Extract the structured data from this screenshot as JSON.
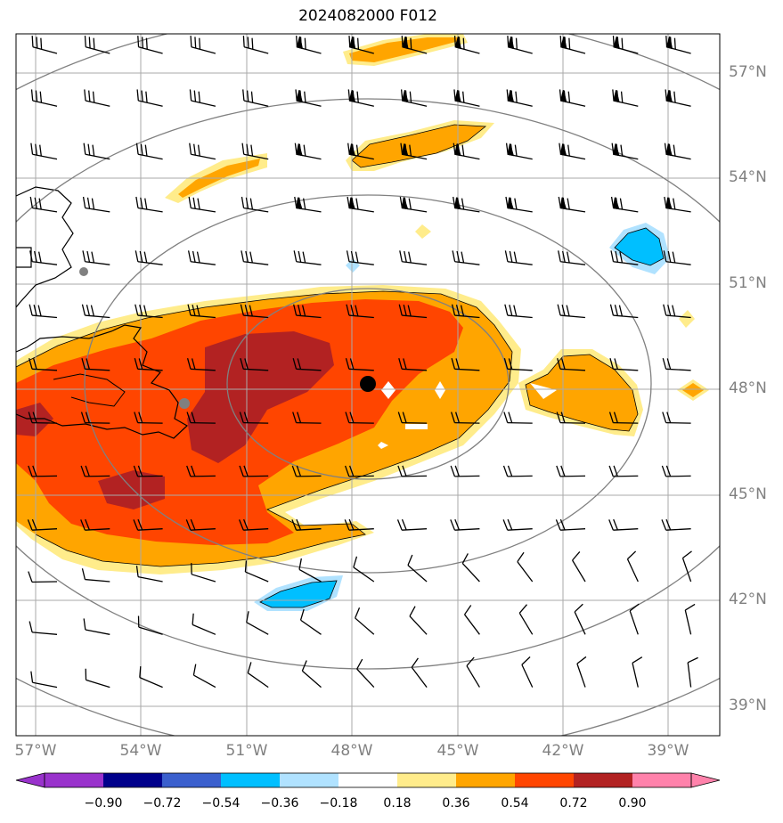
{
  "title": "2024082000 F012",
  "lat_labels": [
    "57°N",
    "54°N",
    "51°N",
    "48°N",
    "45°N",
    "42°N",
    "39°N"
  ],
  "lon_labels": [
    "57°W",
    "54°W",
    "51°W",
    "48°W",
    "45°W",
    "42°W",
    "39°W"
  ],
  "colorbar": {
    "ticks": [
      "−0.90",
      "−0.72",
      "−0.54",
      "−0.36",
      "−0.18",
      "0.18",
      "0.36",
      "0.54",
      "0.72",
      "0.90"
    ],
    "colors": [
      "#9932cc",
      "#00008b",
      "#3a5fcd",
      "#00bfff",
      "#b0e2ff",
      "#ffffff",
      "#ffec8b",
      "#ffa500",
      "#ff4500",
      "#b22222",
      "#ff82ab"
    ]
  },
  "map_colors": {
    "shade_light": "#ffec8b",
    "shade_orange": "#ffa500",
    "shade_red": "#ff4500",
    "shade_dark": "#b22222",
    "neg_light": "#b0e2ff",
    "neg_mid": "#00bfff",
    "grid": "#aaaaaa",
    "rings": "#808080",
    "center_dot": "#000000",
    "city_dot": "#808080"
  }
}
